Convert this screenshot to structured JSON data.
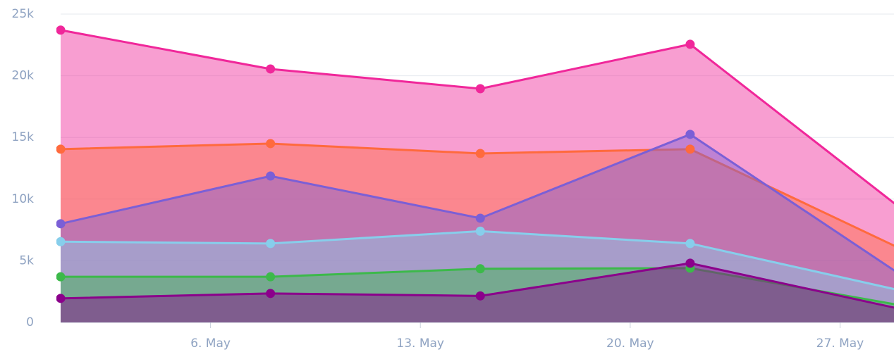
{
  "chart_data": {
    "type": "area",
    "x": [
      1,
      8,
      15,
      22,
      29
    ],
    "xlim": [
      1,
      28.8
    ],
    "xticks": [
      {
        "value": 6,
        "label": "6. May"
      },
      {
        "value": 13,
        "label": "13. May"
      },
      {
        "value": 20,
        "label": "20. May"
      },
      {
        "value": 27,
        "label": "27. May"
      }
    ],
    "ylim": [
      0,
      25000
    ],
    "yticks": [
      0,
      {
        "value": 5000,
        "label": "5k"
      },
      {
        "value": 10000,
        "label": "10k"
      },
      {
        "value": 15000,
        "label": "15k"
      },
      {
        "value": 20000,
        "label": "20k"
      },
      {
        "value": 25000,
        "label": "25k"
      }
    ],
    "grid": true,
    "series": [
      {
        "color": "#f0279a",
        "values": [
          23700,
          20550,
          18950,
          22550,
          9300
        ]
      },
      {
        "color": "#ff6a3d",
        "values": [
          14050,
          14500,
          13700,
          14050,
          6000
        ]
      },
      {
        "color": "#7b5fd6",
        "values": [
          8000,
          11870,
          8450,
          15250,
          3900
        ]
      },
      {
        "color": "#87ceeb",
        "values": [
          6550,
          6400,
          7400,
          6400,
          2600
        ]
      },
      {
        "color": "#3cb94a",
        "values": [
          3700,
          3700,
          4350,
          4400,
          1400
        ]
      },
      {
        "color": "#8b008b",
        "values": [
          1950,
          2350,
          2150,
          4800,
          1100
        ]
      }
    ]
  }
}
